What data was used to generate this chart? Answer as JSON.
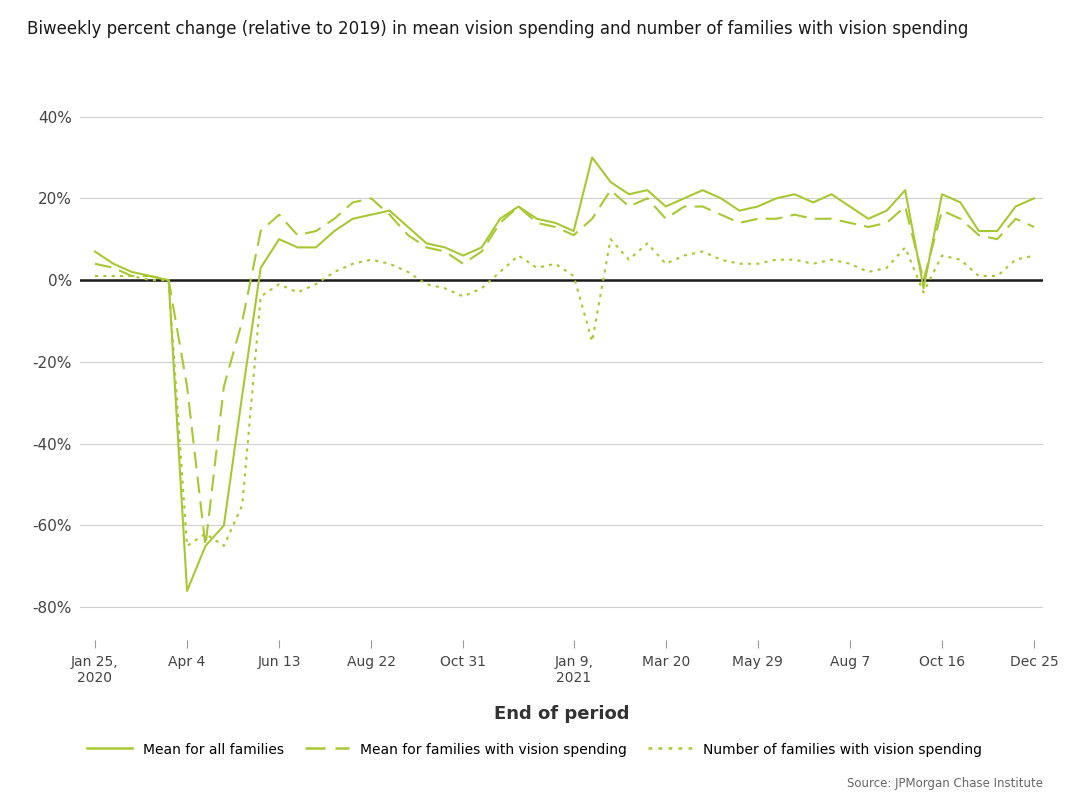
{
  "title": "Biweekly percent change (relative to 2019) in mean vision spending and number of families with vision spending",
  "xlabel": "End of period",
  "line_color": "#a8c832",
  "background_color": "#ffffff",
  "grid_color": "#d0d0d0",
  "zero_line_color": "#1a1a1a",
  "source_text": "Source: JPMorgan Chase Institute",
  "legend_labels": [
    "Mean for all families",
    "Mean for families with vision spending",
    "Number of families with vision spending"
  ],
  "x_tick_labels": [
    "Jan 25,\n2020",
    "Apr 4",
    "Jun 13",
    "Aug 22",
    "Oct 31",
    "Jan 9,\n2021",
    "Mar 20",
    "May 29",
    "Aug 7",
    "Oct 16",
    "Dec 25"
  ],
  "x_tick_positions": [
    0,
    5,
    10,
    15,
    20,
    26,
    31,
    36,
    41,
    46,
    51
  ],
  "ylim": [
    -88,
    46
  ],
  "yticks": [
    -80,
    -60,
    -40,
    -20,
    0,
    20,
    40
  ],
  "ytick_labels": [
    "-80%",
    "-60%",
    "-40%",
    "-20%",
    "0%",
    "20%",
    "40%"
  ],
  "series_all": [
    7,
    4,
    2,
    1,
    0,
    -76,
    -65,
    -60,
    -28,
    3,
    10,
    8,
    8,
    12,
    15,
    16,
    17,
    13,
    9,
    8,
    6,
    8,
    15,
    18,
    15,
    14,
    12,
    30,
    24,
    21,
    22,
    18,
    20,
    22,
    20,
    17,
    18,
    20,
    21,
    19,
    21,
    18,
    15,
    17,
    22,
    -2,
    21,
    19,
    12,
    12,
    18,
    20
  ],
  "series_mean_vis": [
    4,
    3,
    1,
    1,
    0,
    -26,
    -65,
    -26,
    -10,
    12,
    16,
    11,
    12,
    15,
    19,
    20,
    16,
    11,
    8,
    7,
    4,
    7,
    14,
    18,
    14,
    13,
    11,
    15,
    22,
    18,
    20,
    15,
    18,
    18,
    16,
    14,
    15,
    15,
    16,
    15,
    15,
    14,
    13,
    14,
    18,
    0,
    17,
    15,
    11,
    10,
    15,
    13
  ],
  "series_num_vis": [
    1,
    1,
    1,
    0,
    0,
    -65,
    -62,
    -65,
    -55,
    -4,
    -1,
    -3,
    -1,
    2,
    4,
    5,
    4,
    2,
    -1,
    -2,
    -4,
    -2,
    2,
    6,
    3,
    4,
    1,
    -15,
    10,
    5,
    9,
    4,
    6,
    7,
    5,
    4,
    4,
    5,
    5,
    4,
    5,
    4,
    2,
    3,
    8,
    -3,
    6,
    5,
    1,
    1,
    5,
    6
  ]
}
